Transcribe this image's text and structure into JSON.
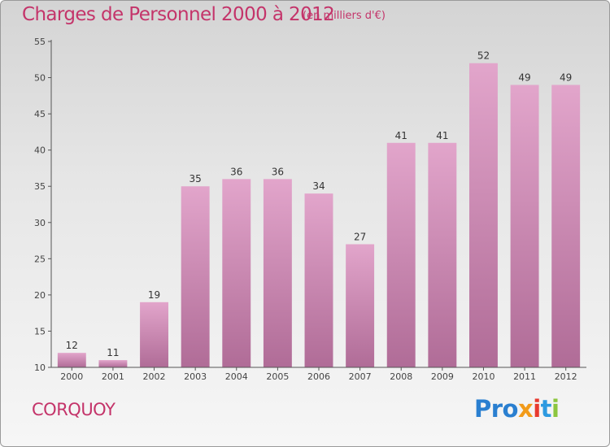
{
  "chart_data": {
    "type": "bar",
    "title": "Charges de Personnel 2000 à 2012",
    "subtitle": "(en milliers d'€)",
    "categories": [
      "2000",
      "2001",
      "2002",
      "2003",
      "2004",
      "2005",
      "2006",
      "2007",
      "2008",
      "2009",
      "2010",
      "2011",
      "2012"
    ],
    "values": [
      12,
      11,
      19,
      35,
      36,
      36,
      34,
      27,
      41,
      41,
      52,
      49,
      49
    ],
    "ylim": [
      10,
      55
    ],
    "yticks": [
      10,
      15,
      20,
      25,
      30,
      35,
      40,
      45,
      50,
      55
    ],
    "grid": false,
    "data_labels": true,
    "bar_color_top": "#e2a5cb",
    "bar_color_bottom": "#b06c97",
    "text_color": "#c4346a"
  },
  "footer": {
    "town": "CORQUOY",
    "logo": [
      "Pro",
      "x",
      "i",
      "t",
      "i"
    ]
  }
}
